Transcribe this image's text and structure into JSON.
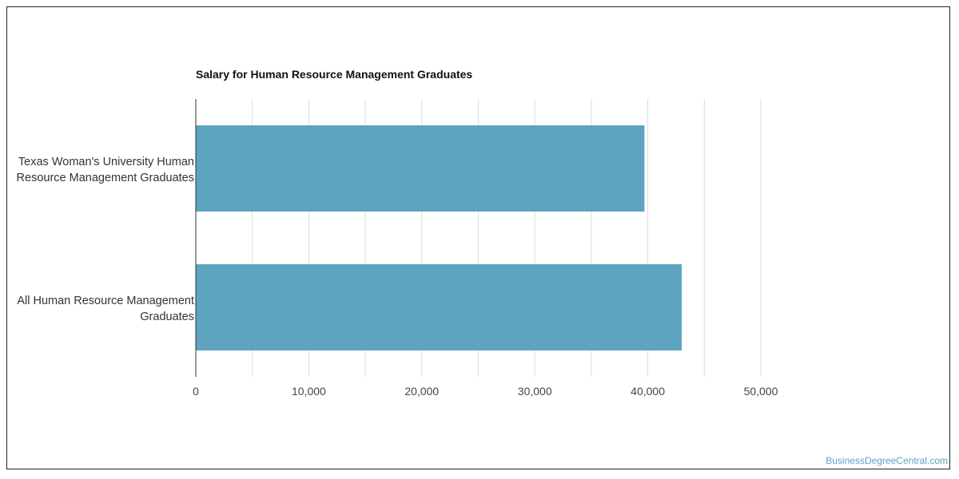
{
  "chart_data": {
    "type": "bar",
    "orientation": "horizontal",
    "title": "Salary for Human Resource Management Graduates",
    "categories": [
      [
        "Texas Woman's University Human",
        "Resource Management Graduates"
      ],
      [
        "All Human Resource Management",
        "Graduates"
      ]
    ],
    "values": [
      39700,
      43000
    ],
    "xlim": [
      0,
      60000
    ],
    "xticks": [
      0,
      10000,
      20000,
      30000,
      40000,
      50000
    ],
    "xtick_labels": [
      "0",
      "10,000",
      "20,000",
      "30,000",
      "40,000",
      "50,000"
    ],
    "grid": true,
    "bar_color": "#5ea3c0"
  },
  "credit": "BusinessDegreeCentral.com"
}
